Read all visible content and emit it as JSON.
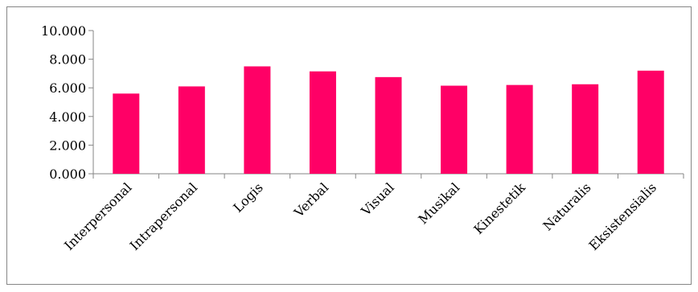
{
  "chart_data": {
    "type": "bar",
    "categories": [
      "Interpersonal",
      "Intrapersonal",
      "Logis",
      "Verbal",
      "Visual",
      "Musikal",
      "Kinestetik",
      "Naturalis",
      "Eksistensialis"
    ],
    "values": [
      5.6,
      6.1,
      7.5,
      7.15,
      6.75,
      6.15,
      6.2,
      6.25,
      7.2
    ],
    "ylim": [
      0,
      10
    ],
    "yticks": [
      0,
      2,
      4,
      6,
      8,
      10
    ],
    "ytick_labels": [
      "0.000",
      "2.000",
      "4.000",
      "6.000",
      "8.000",
      "10.000"
    ],
    "bar_color": "#FF0066",
    "grid": false,
    "legend": "none"
  }
}
